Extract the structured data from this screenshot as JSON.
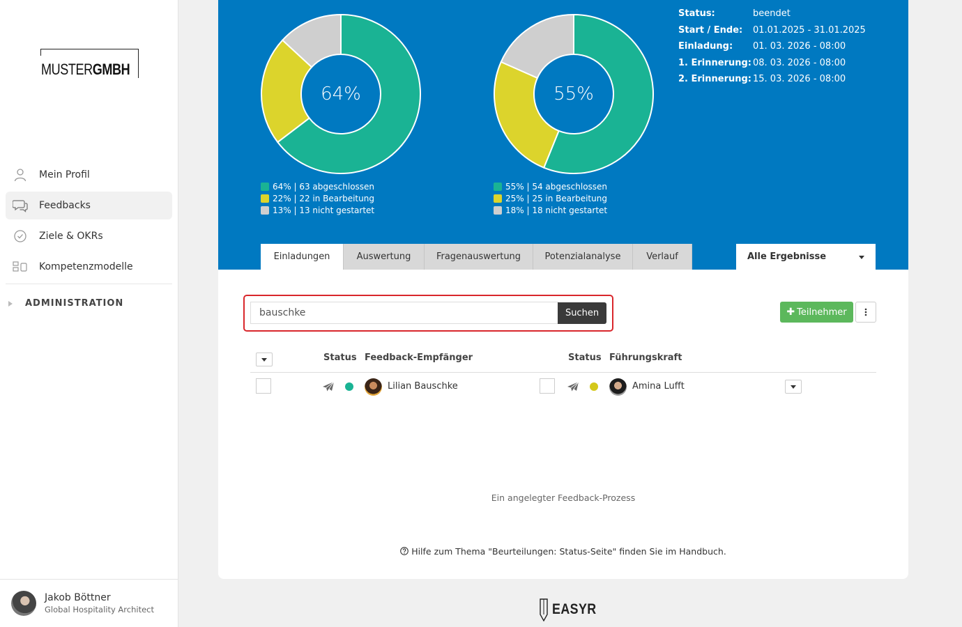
{
  "sidebar": {
    "logo": {
      "part1": "MUSTER",
      "part2": "GMBH"
    },
    "items": [
      {
        "label": "Mein Profil",
        "icon": "user-icon",
        "active": false
      },
      {
        "label": "Feedbacks",
        "icon": "chat-icon",
        "active": true
      },
      {
        "label": "Ziele & OKRs",
        "icon": "check-circle-icon",
        "active": false
      },
      {
        "label": "Kompetenzmodelle",
        "icon": "blocks-icon",
        "active": false
      }
    ],
    "admin_label": "ADMINISTRATION",
    "user": {
      "name": "Jakob Böttner",
      "role": "Global Hospitality Architect"
    }
  },
  "stats": {
    "donut1": {
      "center": "64%",
      "segments": [
        {
          "label": "64% | 63 abgeschlossen",
          "value": 64,
          "color": "#1ab394"
        },
        {
          "label": "22% | 22 in Bearbeitung",
          "value": 22,
          "color": "#dcd42c"
        },
        {
          "label": "13% | 13 nicht gestartet",
          "value": 13,
          "color": "#cfcfcf"
        }
      ]
    },
    "donut2": {
      "center": "55%",
      "segments": [
        {
          "label": "55% | 54 abgeschlossen",
          "value": 55,
          "color": "#1ab394"
        },
        {
          "label": "25% | 25 in Bearbeitung",
          "value": 25,
          "color": "#dcd42c"
        },
        {
          "label": "18% | 18 nicht gestartet",
          "value": 18,
          "color": "#cfcfcf"
        }
      ]
    }
  },
  "info": [
    {
      "key": "Status:",
      "value": "beendet"
    },
    {
      "key": "Start / Ende:",
      "value": "01.01.2025 - 31.01.2025"
    },
    {
      "key": "Einladung:",
      "value": "01. 03. 2026 - 08:00"
    },
    {
      "key": "1. Erinnerung:",
      "value": "08. 03. 2026 - 08:00"
    },
    {
      "key": "2. Erinnerung:",
      "value": "15. 03. 2026 - 08:00"
    }
  ],
  "tabs": [
    "Einladungen",
    "Auswertung",
    "Fragenauswertung",
    "Potenzialanalyse",
    "Verlauf"
  ],
  "filter": {
    "selected": "Alle Ergebnisse"
  },
  "search": {
    "value": "bauschke",
    "button": "Suchen"
  },
  "actions": {
    "add_participant": "Teilnehmer"
  },
  "table": {
    "headers": {
      "status1": "Status",
      "recipient": "Feedback-Empfänger",
      "status2": "Status",
      "manager": "Führungskraft"
    },
    "rows": [
      {
        "recipient": "Lilian Bauschke",
        "recipient_status_color": "#1ab394",
        "manager": "Amina Lufft",
        "manager_status_color": "#d4c81a"
      }
    ]
  },
  "footnote": "Ein angelegter Feedback-Prozess",
  "help": "Hilfe zum Thema \"Beurteilungen: Status-Seite\" finden Sie im Handbuch.",
  "brand": "EASYR",
  "colors": {
    "primary_blue": "#0079c1",
    "green": "#1ab394",
    "yellow": "#dcd42c",
    "grey": "#cfcfcf",
    "button_green": "#5cb85c"
  }
}
